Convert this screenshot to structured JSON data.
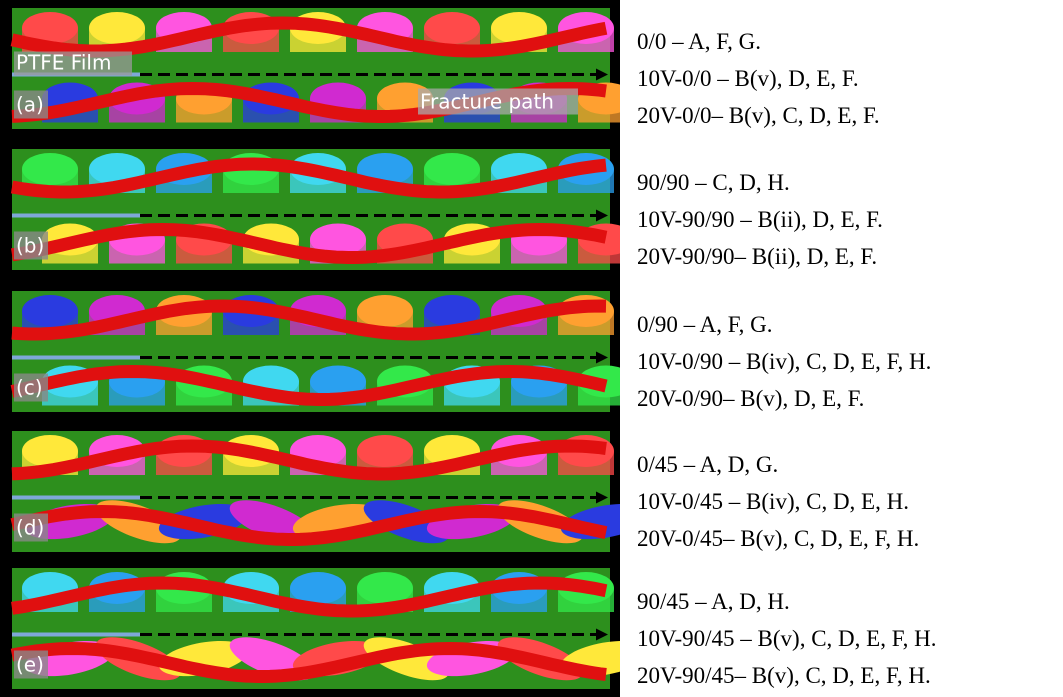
{
  "annotations": {
    "film": "PTFE Film",
    "fracture": "Fracture path"
  },
  "panels": [
    {
      "label": "(a)",
      "lines": [
        "0/0 – A, F, G.",
        "10V-0/0 – B(v), D, E, F.",
        "20V-0/0– B(v), C, D, E, F."
      ]
    },
    {
      "label": "(b)",
      "lines": [
        "90/90 – C, D, H.",
        "10V-90/90 – B(ii), D, E, F.",
        "20V-90/90– B(ii), D, E, F."
      ]
    },
    {
      "label": "(c)",
      "lines": [
        "0/90 – A, F, G.",
        "10V-0/90 – B(iv), C, D, E, F, H.",
        "20V-0/90– B(v), D, E, F."
      ]
    },
    {
      "label": "(d)",
      "lines": [
        "0/45 – A, D, G.",
        "10V-0/45 – B(iv), C, D, E, H.",
        "20V-0/45– B(v), C, D, E, F, H."
      ]
    },
    {
      "label": "(e)",
      "lines": [
        "90/45 – A, D, H.",
        "10V-90/45 – B(v), C, D, E, F, H.",
        "20V-90/45– B(v), C, D, E, F, H."
      ]
    }
  ]
}
